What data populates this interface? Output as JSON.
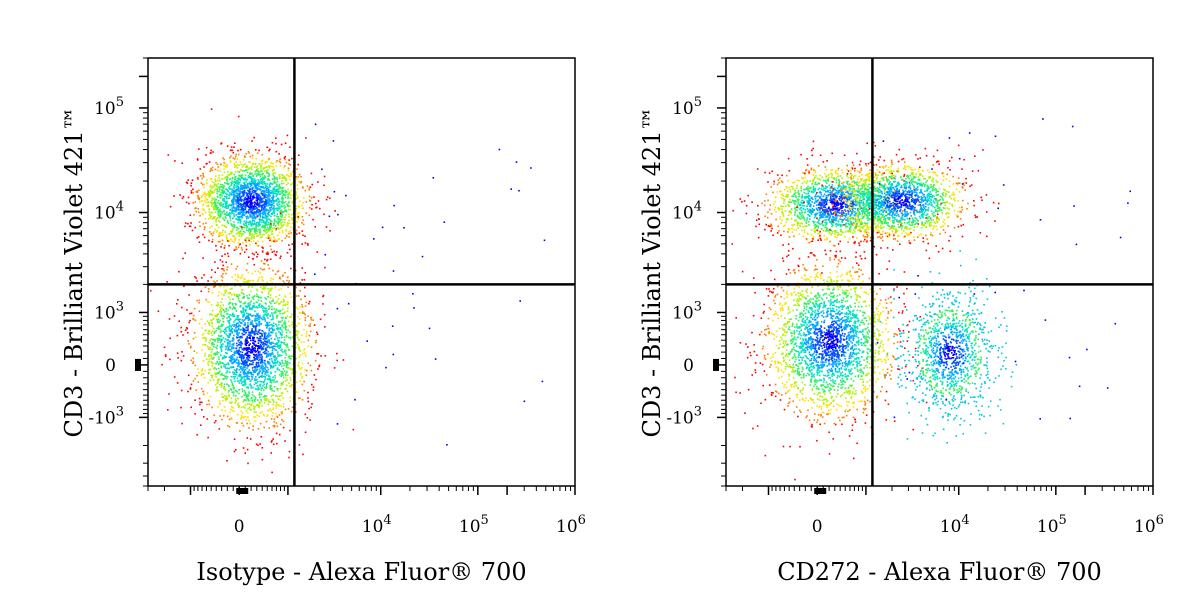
{
  "chart_data": [
    {
      "type": "scatter",
      "subtype": "flow-cytometry-density-plot",
      "xlabel": "Isotype - Alexa Fluor® 700",
      "ylabel": "CD3 - Brilliant Violet 421™",
      "x_scale": "biexponential",
      "y_scale": "biexponential",
      "x_tick_labels": [
        "0",
        "10^4",
        "10^5",
        "10^6"
      ],
      "y_tick_labels": [
        "10^5",
        "10^4",
        "10^3",
        "0",
        "-10^3"
      ],
      "xlim": [
        -3000,
        1000000
      ],
      "ylim": [
        -5000,
        300000
      ],
      "quadrant_gate": {
        "x": 1200,
        "y": 2000
      },
      "populations": [
        {
          "x": 200,
          "y": 13000,
          "density": "high"
        },
        {
          "x": 200,
          "y": 300,
          "density": "high"
        }
      ]
    },
    {
      "type": "scatter",
      "subtype": "flow-cytometry-density-plot",
      "xlabel": "CD272 - Alexa Fluor® 700",
      "ylabel": "CD3 - Brilliant Violet 421™",
      "x_scale": "biexponential",
      "y_scale": "biexponential",
      "x_tick_labels": [
        "0",
        "10^4",
        "10^5",
        "10^6"
      ],
      "y_tick_labels": [
        "10^5",
        "10^4",
        "10^3",
        "0",
        "-10^3"
      ],
      "xlim": [
        -3000,
        1000000
      ],
      "ylim": [
        -5000,
        300000
      ],
      "quadrant_gate": {
        "x": 1200,
        "y": 2000
      },
      "populations": [
        {
          "x": 300,
          "y": 12000,
          "density": "high"
        },
        {
          "x": 2500,
          "y": 13000,
          "density": "high"
        },
        {
          "x": 200,
          "y": 400,
          "density": "high"
        },
        {
          "x": 8000,
          "y": 200,
          "density": "medium"
        }
      ]
    }
  ]
}
